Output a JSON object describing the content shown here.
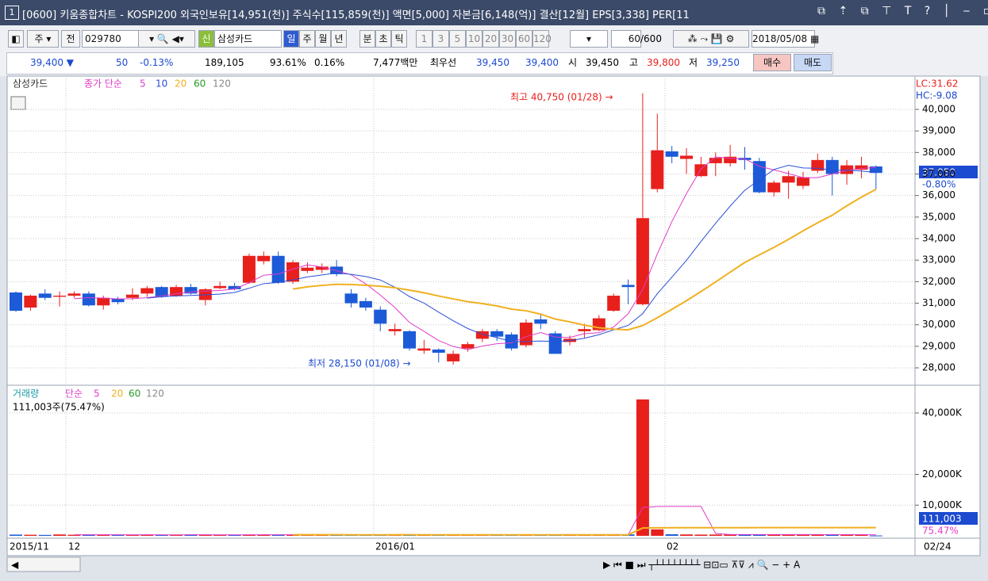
{
  "window": {
    "icon": "1",
    "title": "[0600] 키움종합차트 - KOSPI200 외국인보유[14,951(천)] 주식수[115,859(천)] 액면[5,000] 자본금[6,148(억)] 결산[12월] EPS[3,338] PER[11"
  },
  "toolbar": {
    "period": "주",
    "prev": "전",
    "code": "029780",
    "badge": "신",
    "name": "삼성카드",
    "units": [
      "일",
      "주",
      "월",
      "년",
      "분",
      "초",
      "틱"
    ],
    "intervals": [
      "1",
      "3",
      "5",
      "10",
      "20",
      "30",
      "60",
      "120"
    ],
    "count": "60",
    "count_max": "/600",
    "date": "2018/05/08"
  },
  "info_bar": {
    "price": "39,400 ▼",
    "change": "50",
    "change_rate": "-0.13%",
    "volume": "189,105",
    "vol_rate": "93.61%",
    "turnover_rate": "0.16%",
    "amount": "7,477백만",
    "best_label": "최우선",
    "best_ask": "39,450",
    "best_bid": "39,400",
    "open_label": "시",
    "open": "39,450",
    "high_label": "고",
    "high": "39,800",
    "low_label": "저",
    "low": "39,250",
    "buy": "매수",
    "sell": "매도"
  },
  "price_chart": {
    "type": "candlestick",
    "legend": {
      "name": "삼성카드",
      "ma_label": "종가 단순",
      "ma_periods": [
        5,
        10,
        20,
        60,
        120
      ],
      "ma_colors": [
        "#e03cc8",
        "#2a4fd6",
        "#f0b020",
        "#2a9a2a",
        "#888888"
      ]
    },
    "up_color": "#e8201c",
    "down_color": "#1c5ad8",
    "open": [
      31500,
      30800,
      31450,
      31300,
      31350,
      31450,
      30900,
      31200,
      31250,
      31450,
      31750,
      31350,
      31750,
      31150,
      31700,
      31800,
      31950,
      32950,
      33200,
      32000,
      32500,
      32550,
      32700,
      31450,
      31100,
      30700,
      29700,
      29700,
      28800,
      28850,
      28300,
      28900,
      29350,
      29700,
      29550,
      29050,
      30250,
      29600,
      29200,
      29700,
      29750,
      30650,
      31850,
      30950,
      36300,
      38050,
      37700,
      36900,
      37500,
      37500,
      37750,
      37600,
      36150,
      36600,
      36450,
      37150,
      37650,
      37000,
      37200,
      37350
    ],
    "high": [
      31550,
      31400,
      31650,
      31550,
      31550,
      31550,
      31350,
      31300,
      31700,
      31800,
      31800,
      31850,
      31900,
      31700,
      32000,
      31950,
      33300,
      33400,
      33400,
      33000,
      32900,
      32850,
      33000,
      31650,
      31250,
      30850,
      30050,
      29750,
      29300,
      28900,
      28800,
      29200,
      29800,
      29800,
      29650,
      30250,
      30450,
      29700,
      29500,
      30050,
      30450,
      31450,
      32100,
      40750,
      39800,
      38300,
      38200,
      37800,
      38000,
      38350,
      38250,
      37750,
      36700,
      37150,
      37100,
      37950,
      37800,
      37650,
      37800,
      37400
    ],
    "low": [
      30600,
      30650,
      31150,
      30850,
      31250,
      30850,
      30700,
      30950,
      31150,
      31300,
      31250,
      31300,
      31400,
      30900,
      31650,
      31600,
      31900,
      32800,
      31900,
      31900,
      32400,
      32400,
      32250,
      30800,
      30650,
      29700,
      29500,
      28800,
      28650,
      28250,
      28150,
      28750,
      29200,
      29250,
      28800,
      28950,
      29800,
      28650,
      29050,
      29400,
      29700,
      30600,
      30950,
      30900,
      36150,
      37500,
      37000,
      36850,
      36900,
      37350,
      37200,
      36100,
      35950,
      35850,
      36300,
      37050,
      36000,
      36500,
      36800,
      36300
    ],
    "close": [
      30650,
      31350,
      31250,
      31350,
      31450,
      30900,
      31250,
      31050,
      31400,
      31700,
      31300,
      31750,
      31450,
      31650,
      31800,
      31650,
      33200,
      33200,
      31950,
      32900,
      32650,
      32700,
      32350,
      31000,
      30800,
      30050,
      29800,
      28900,
      28900,
      28700,
      28650,
      29100,
      29700,
      29450,
      28900,
      30100,
      30050,
      28650,
      29350,
      29800,
      30300,
      31350,
      31750,
      34950,
      38100,
      37800,
      37850,
      37450,
      37750,
      37800,
      37650,
      36150,
      36600,
      36900,
      36850,
      37650,
      37000,
      37400,
      37400,
      37050
    ],
    "ylim": [
      27230,
      41545
    ],
    "yticks": [
      {
        "value": 28000,
        "label": "28,000"
      },
      {
        "value": 29000,
        "label": "29,000"
      },
      {
        "value": 30000,
        "label": "30,000"
      },
      {
        "value": 31000,
        "label": "31,000"
      },
      {
        "value": 32000,
        "label": "32,000"
      },
      {
        "value": 33000,
        "label": "33,000"
      },
      {
        "value": 34000,
        "label": "34,000"
      },
      {
        "value": 35000,
        "label": "35,000"
      },
      {
        "value": 36000,
        "label": "36,000"
      },
      {
        "value": 37000,
        "label": "37,000"
      },
      {
        "value": 38000,
        "label": "38,000"
      },
      {
        "value": 39000,
        "label": "39,000"
      },
      {
        "value": 40000,
        "label": "40,000"
      }
    ],
    "high_note": "최고 40,750 (01/28) →",
    "low_note": "최저 28,150 (01/08) →",
    "lc": "LC:31.62",
    "hc": "HC:-9.08",
    "last_price": "37,050",
    "last_rate": "-0.80%"
  },
  "volume_chart": {
    "type": "bar",
    "legend": {
      "name": "거래량",
      "ma_label": "단순",
      "ma_periods": [
        5,
        20,
        60,
        120
      ],
      "ma_colors": [
        "#e03cc8",
        "#f0b020",
        "#2a9a2a",
        "#888888"
      ]
    },
    "status": "111,003주(75.47%)",
    "values": [
      400,
      350,
      300,
      450,
      350,
      400,
      300,
      250,
      350,
      400,
      300,
      380,
      300,
      350,
      300,
      280,
      420,
      350,
      400,
      350,
      300,
      300,
      320,
      350,
      300,
      400,
      350,
      300,
      280,
      300,
      320,
      300,
      350,
      300,
      320,
      380,
      300,
      350,
      300,
      320,
      350,
      400,
      450,
      44400,
      2100,
      500,
      450,
      400,
      420,
      380,
      450,
      500,
      400,
      380,
      350,
      420,
      400,
      380,
      350,
      111
    ],
    "ylim": [
      0,
      48000
    ],
    "yticks": [
      {
        "value": 10000,
        "label": "10,000K"
      },
      {
        "value": 20000,
        "label": "20,000K"
      },
      {
        "value": 40000,
        "label": "40,000K"
      }
    ],
    "last_value": "111,003",
    "last_rate": "75.47%"
  },
  "x_axis": {
    "labels": [
      "2015/11",
      "12",
      "2016/01",
      "02"
    ],
    "last": "02/24"
  }
}
